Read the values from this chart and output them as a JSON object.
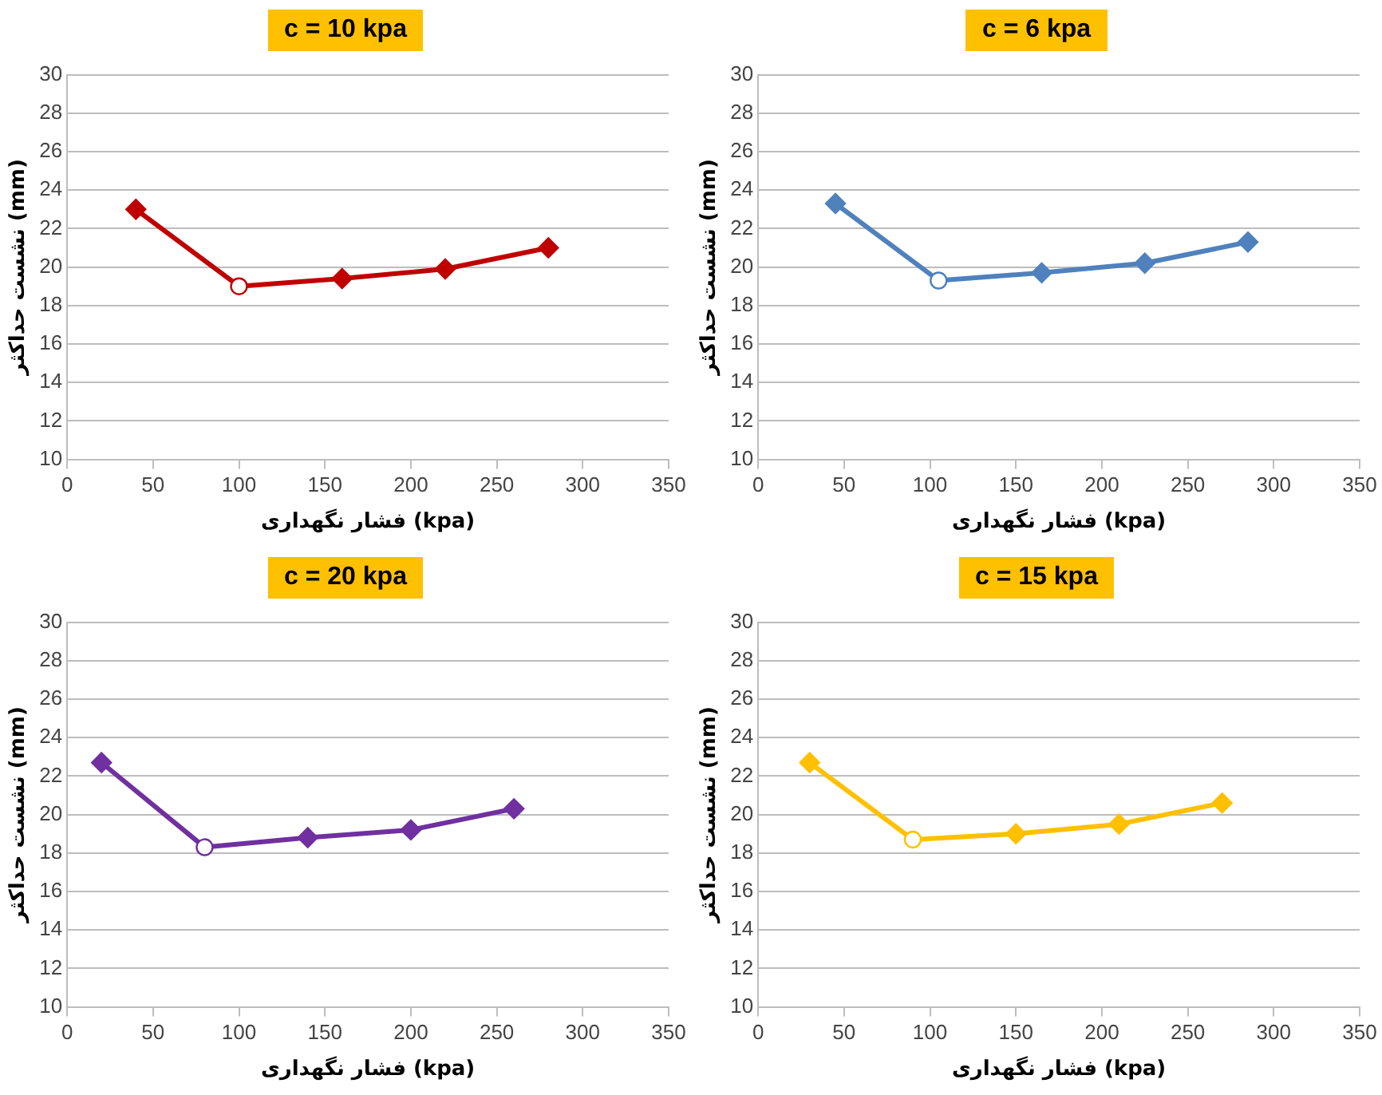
{
  "chart_data": [
    {
      "type": "line",
      "title": "c = 10 kpa",
      "xlabel": "فشار نگهداری (kpa)",
      "ylabel": "نشست حداکثر (mm)",
      "xlim": [
        0,
        350
      ],
      "xticks": [
        0,
        50,
        100,
        150,
        200,
        250,
        300,
        350
      ],
      "ylim": [
        10,
        30
      ],
      "yticks": [
        10,
        12,
        14,
        16,
        18,
        20,
        22,
        24,
        26,
        28,
        30
      ],
      "grid": "y",
      "legend": false,
      "series": [
        {
          "type": "line",
          "color": "#c00000",
          "marker": "none",
          "x": [
            40,
            100,
            160,
            220,
            280
          ],
          "values": [
            23.0,
            19.0,
            19.4,
            19.9,
            21.0
          ]
        },
        {
          "type": "scatter",
          "color": "#c00000",
          "marker": "diamond",
          "x": [
            40,
            160,
            220,
            280
          ],
          "values": [
            23.0,
            19.4,
            19.9,
            21.0
          ]
        },
        {
          "type": "scatter",
          "color": "#c00000",
          "marker": "circle",
          "x": [
            100
          ],
          "values": [
            19.0
          ]
        }
      ]
    },
    {
      "type": "line",
      "title": "c = 6 kpa",
      "xlabel": "فشار نگهداری (kpa)",
      "ylabel": "نشست حداکثر (mm)",
      "xlim": [
        0,
        350
      ],
      "xticks": [
        0,
        50,
        100,
        150,
        200,
        250,
        300,
        350
      ],
      "ylim": [
        10,
        30
      ],
      "yticks": [
        10,
        12,
        14,
        16,
        18,
        20,
        22,
        24,
        26,
        28,
        30
      ],
      "grid": "y",
      "legend": false,
      "series": [
        {
          "type": "line",
          "color": "#4f81bd",
          "marker": "none",
          "x": [
            45,
            105,
            165,
            225,
            285
          ],
          "values": [
            23.3,
            19.3,
            19.7,
            20.2,
            21.3
          ]
        },
        {
          "type": "scatter",
          "color": "#4f81bd",
          "marker": "diamond",
          "x": [
            45,
            165,
            225,
            285
          ],
          "values": [
            23.3,
            19.7,
            20.2,
            21.3
          ]
        },
        {
          "type": "scatter",
          "color": "#4f81bd",
          "marker": "circle",
          "x": [
            105
          ],
          "values": [
            19.3
          ]
        }
      ]
    },
    {
      "type": "line",
      "title": "c = 20 kpa",
      "xlabel": "فشار نگهداری (kpa)",
      "ylabel": "نشست حداکثر (mm)",
      "xlim": [
        0,
        350
      ],
      "xticks": [
        0,
        50,
        100,
        150,
        200,
        250,
        300,
        350
      ],
      "ylim": [
        10,
        30
      ],
      "yticks": [
        10,
        12,
        14,
        16,
        18,
        20,
        22,
        24,
        26,
        28,
        30
      ],
      "grid": "y",
      "legend": false,
      "series": [
        {
          "type": "line",
          "color": "#7030a0",
          "marker": "none",
          "x": [
            20,
            80,
            140,
            200,
            260
          ],
          "values": [
            22.7,
            18.3,
            18.8,
            19.2,
            20.3
          ]
        },
        {
          "type": "scatter",
          "color": "#7030a0",
          "marker": "diamond",
          "x": [
            20,
            140,
            200,
            260
          ],
          "values": [
            22.7,
            18.8,
            19.2,
            20.3
          ]
        },
        {
          "type": "scatter",
          "color": "#7030a0",
          "marker": "circle",
          "x": [
            80
          ],
          "values": [
            18.3
          ]
        }
      ]
    },
    {
      "type": "line",
      "title": "c = 15 kpa",
      "xlabel": "فشار نگهداری (kpa)",
      "ylabel": "نشست حداکثر (mm)",
      "xlim": [
        0,
        350
      ],
      "xticks": [
        0,
        50,
        100,
        150,
        200,
        250,
        300,
        350
      ],
      "ylim": [
        10,
        30
      ],
      "yticks": [
        10,
        12,
        14,
        16,
        18,
        20,
        22,
        24,
        26,
        28,
        30
      ],
      "grid": "y",
      "legend": false,
      "series": [
        {
          "type": "line",
          "color": "#ffc000",
          "marker": "none",
          "x": [
            30,
            90,
            150,
            210,
            270
          ],
          "values": [
            22.7,
            18.7,
            19.0,
            19.5,
            20.6
          ]
        },
        {
          "type": "scatter",
          "color": "#ffc000",
          "marker": "diamond",
          "x": [
            30,
            150,
            210,
            270
          ],
          "values": [
            22.7,
            19.0,
            19.5,
            20.6
          ]
        },
        {
          "type": "scatter",
          "color": "#ffc000",
          "marker": "circle",
          "x": [
            90
          ],
          "values": [
            18.7
          ]
        }
      ]
    }
  ]
}
